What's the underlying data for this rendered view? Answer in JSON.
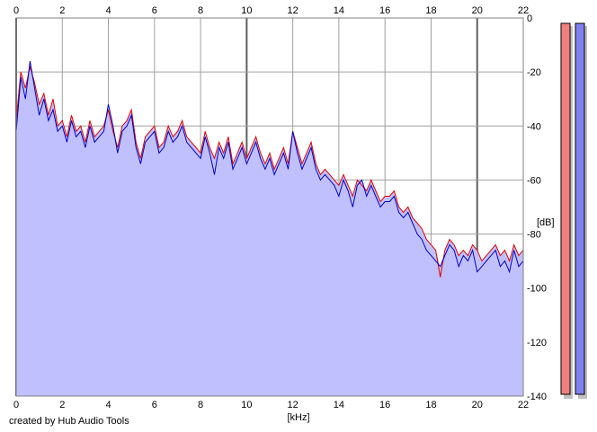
{
  "chart_data": {
    "type": "area",
    "title": "",
    "xlabel": "[kHz]",
    "ylabel": "[dB]",
    "xlim": [
      0,
      22
    ],
    "ylim": [
      -140,
      0
    ],
    "x_ticks": [
      "0",
      "2",
      "4",
      "6",
      "8",
      "10",
      "12",
      "14",
      "16",
      "18",
      "20",
      "22"
    ],
    "y_ticks": [
      "0",
      "-20",
      "-40",
      "-60",
      "-80",
      "-100",
      "-120",
      "-140"
    ],
    "grid": true,
    "legend": "none",
    "series": [
      {
        "color": "#e00000",
        "x": [
          0.0,
          0.2,
          0.4,
          0.6,
          0.8,
          1.0,
          1.2,
          1.4,
          1.6,
          1.8,
          2.0,
          2.2,
          2.4,
          2.6,
          2.8,
          3.0,
          3.2,
          3.4,
          3.6,
          3.8,
          4.0,
          4.2,
          4.4,
          4.6,
          4.8,
          5.0,
          5.2,
          5.4,
          5.6,
          5.8,
          6.0,
          6.2,
          6.4,
          6.6,
          6.8,
          7.0,
          7.2,
          7.4,
          7.6,
          7.8,
          8.0,
          8.2,
          8.4,
          8.6,
          8.8,
          9.0,
          9.2,
          9.4,
          9.6,
          9.8,
          10.0,
          10.2,
          10.4,
          10.6,
          10.8,
          11.0,
          11.2,
          11.4,
          11.6,
          11.8,
          12.0,
          12.2,
          12.4,
          12.6,
          12.8,
          13.0,
          13.2,
          13.4,
          13.6,
          13.8,
          14.0,
          14.2,
          14.4,
          14.6,
          14.8,
          15.0,
          15.2,
          15.4,
          15.6,
          15.8,
          16.0,
          16.2,
          16.4,
          16.6,
          16.8,
          17.0,
          17.2,
          17.4,
          17.6,
          17.8,
          18.0,
          18.2,
          18.4,
          18.6,
          18.8,
          19.0,
          19.2,
          19.4,
          19.6,
          19.8,
          20.0,
          20.2,
          20.4,
          20.6,
          20.8,
          21.0,
          21.2,
          21.4,
          21.6,
          21.8,
          22.0
        ],
        "values": [
          -38,
          -20,
          -26,
          -18,
          -24,
          -32,
          -28,
          -36,
          -30,
          -40,
          -38,
          -44,
          -36,
          -42,
          -40,
          -46,
          -38,
          -44,
          -42,
          -40,
          -34,
          -42,
          -48,
          -40,
          -38,
          -34,
          -46,
          -52,
          -44,
          -42,
          -40,
          -48,
          -46,
          -40,
          -44,
          -42,
          -38,
          -44,
          -46,
          -48,
          -50,
          -42,
          -48,
          -52,
          -46,
          -50,
          -44,
          -54,
          -50,
          -46,
          -52,
          -48,
          -44,
          -50,
          -54,
          -50,
          -56,
          -52,
          -48,
          -54,
          -42,
          -48,
          -54,
          -50,
          -46,
          -54,
          -58,
          -56,
          -58,
          -60,
          -62,
          -58,
          -62,
          -66,
          -60,
          -62,
          -64,
          -60,
          -64,
          -68,
          -66,
          -66,
          -64,
          -70,
          -72,
          -70,
          -74,
          -76,
          -78,
          -82,
          -84,
          -86,
          -96,
          -86,
          -82,
          -84,
          -88,
          -86,
          -88,
          -84,
          -86,
          -90,
          -88,
          -86,
          -84,
          -88,
          -86,
          -90,
          -84,
          -88,
          -86
        ]
      },
      {
        "color": "#0000c0",
        "x": [
          0.0,
          0.2,
          0.4,
          0.6,
          0.8,
          1.0,
          1.2,
          1.4,
          1.6,
          1.8,
          2.0,
          2.2,
          2.4,
          2.6,
          2.8,
          3.0,
          3.2,
          3.4,
          3.6,
          3.8,
          4.0,
          4.2,
          4.4,
          4.6,
          4.8,
          5.0,
          5.2,
          5.4,
          5.6,
          5.8,
          6.0,
          6.2,
          6.4,
          6.6,
          6.8,
          7.0,
          7.2,
          7.4,
          7.6,
          7.8,
          8.0,
          8.2,
          8.4,
          8.6,
          8.8,
          9.0,
          9.2,
          9.4,
          9.6,
          9.8,
          10.0,
          10.2,
          10.4,
          10.6,
          10.8,
          11.0,
          11.2,
          11.4,
          11.6,
          11.8,
          12.0,
          12.2,
          12.4,
          12.6,
          12.8,
          13.0,
          13.2,
          13.4,
          13.6,
          13.8,
          14.0,
          14.2,
          14.4,
          14.6,
          14.8,
          15.0,
          15.2,
          15.4,
          15.6,
          15.8,
          16.0,
          16.2,
          16.4,
          16.6,
          16.8,
          17.0,
          17.2,
          17.4,
          17.6,
          17.8,
          18.0,
          18.2,
          18.4,
          18.6,
          18.8,
          19.0,
          19.2,
          19.4,
          19.6,
          19.8,
          20.0,
          20.2,
          20.4,
          20.6,
          20.8,
          21.0,
          21.2,
          21.4,
          21.6,
          21.8,
          22.0
        ],
        "values": [
          -42,
          -22,
          -30,
          -16,
          -26,
          -36,
          -30,
          -38,
          -34,
          -42,
          -40,
          -46,
          -38,
          -44,
          -42,
          -48,
          -40,
          -46,
          -44,
          -42,
          -32,
          -40,
          -50,
          -42,
          -40,
          -36,
          -48,
          -54,
          -46,
          -44,
          -42,
          -50,
          -48,
          -42,
          -46,
          -44,
          -40,
          -46,
          -48,
          -50,
          -52,
          -44,
          -50,
          -58,
          -48,
          -52,
          -46,
          -56,
          -52,
          -48,
          -54,
          -50,
          -46,
          -52,
          -56,
          -52,
          -58,
          -54,
          -50,
          -56,
          -42,
          -50,
          -56,
          -52,
          -48,
          -56,
          -60,
          -58,
          -60,
          -62,
          -66,
          -60,
          -64,
          -70,
          -62,
          -60,
          -66,
          -62,
          -66,
          -70,
          -68,
          -68,
          -66,
          -72,
          -74,
          -72,
          -76,
          -80,
          -82,
          -86,
          -88,
          -90,
          -92,
          -88,
          -84,
          -86,
          -92,
          -88,
          -90,
          -86,
          -94,
          -92,
          -90,
          -88,
          -86,
          -92,
          -90,
          -94,
          -86,
          -92,
          -90
        ]
      }
    ]
  },
  "meters": [
    {
      "color": "#f08080",
      "level": 1.0
    },
    {
      "color": "#8080f0",
      "level": 1.0
    }
  ],
  "footer": "created by Hub Audio Tools"
}
